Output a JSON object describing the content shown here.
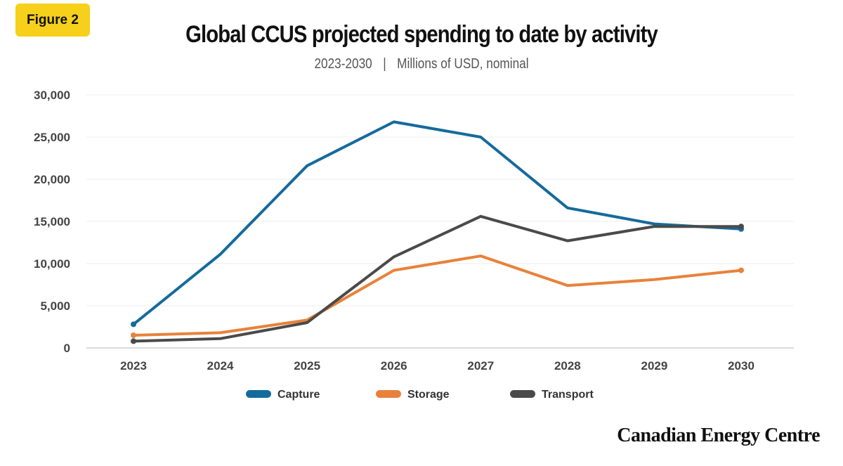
{
  "badge": "Figure 2",
  "header": {
    "title": "Global CCUS projected spending to date by activity",
    "subtitle_period": "2023-2030",
    "subtitle_sep": "|",
    "subtitle_units": "Millions of USD, nominal"
  },
  "brand": "Canadian Energy Centre",
  "colors": {
    "capture": "#156a9c",
    "storage": "#e8823a",
    "transport": "#4a4a4a",
    "grid": "#ececec",
    "badge": "#f6d01a"
  },
  "chart_data": {
    "type": "line",
    "title": "Global CCUS projected spending to date by activity",
    "subtitle": "2023-2030 | Millions of USD, nominal",
    "xlabel": "",
    "ylabel": "",
    "categories": [
      "2023",
      "2024",
      "2025",
      "2026",
      "2027",
      "2028",
      "2029",
      "2030"
    ],
    "ylim": [
      0,
      30000
    ],
    "yticks": [
      0,
      5000,
      10000,
      15000,
      20000,
      25000,
      30000
    ],
    "ytick_labels": [
      "0",
      "5,000",
      "10,000",
      "15,000",
      "20,000",
      "25,000",
      "30,000"
    ],
    "grid": true,
    "legend": "bottom",
    "series": [
      {
        "name": "Capture",
        "color": "#156a9c",
        "values": [
          2800,
          11100,
          21600,
          26800,
          25000,
          16600,
          14700,
          14100
        ]
      },
      {
        "name": "Storage",
        "color": "#e8823a",
        "values": [
          1500,
          1800,
          3300,
          9200,
          10900,
          7400,
          8100,
          9200
        ]
      },
      {
        "name": "Transport",
        "color": "#4a4a4a",
        "values": [
          800,
          1100,
          3000,
          10800,
          15600,
          12700,
          14400,
          14400
        ]
      }
    ]
  }
}
